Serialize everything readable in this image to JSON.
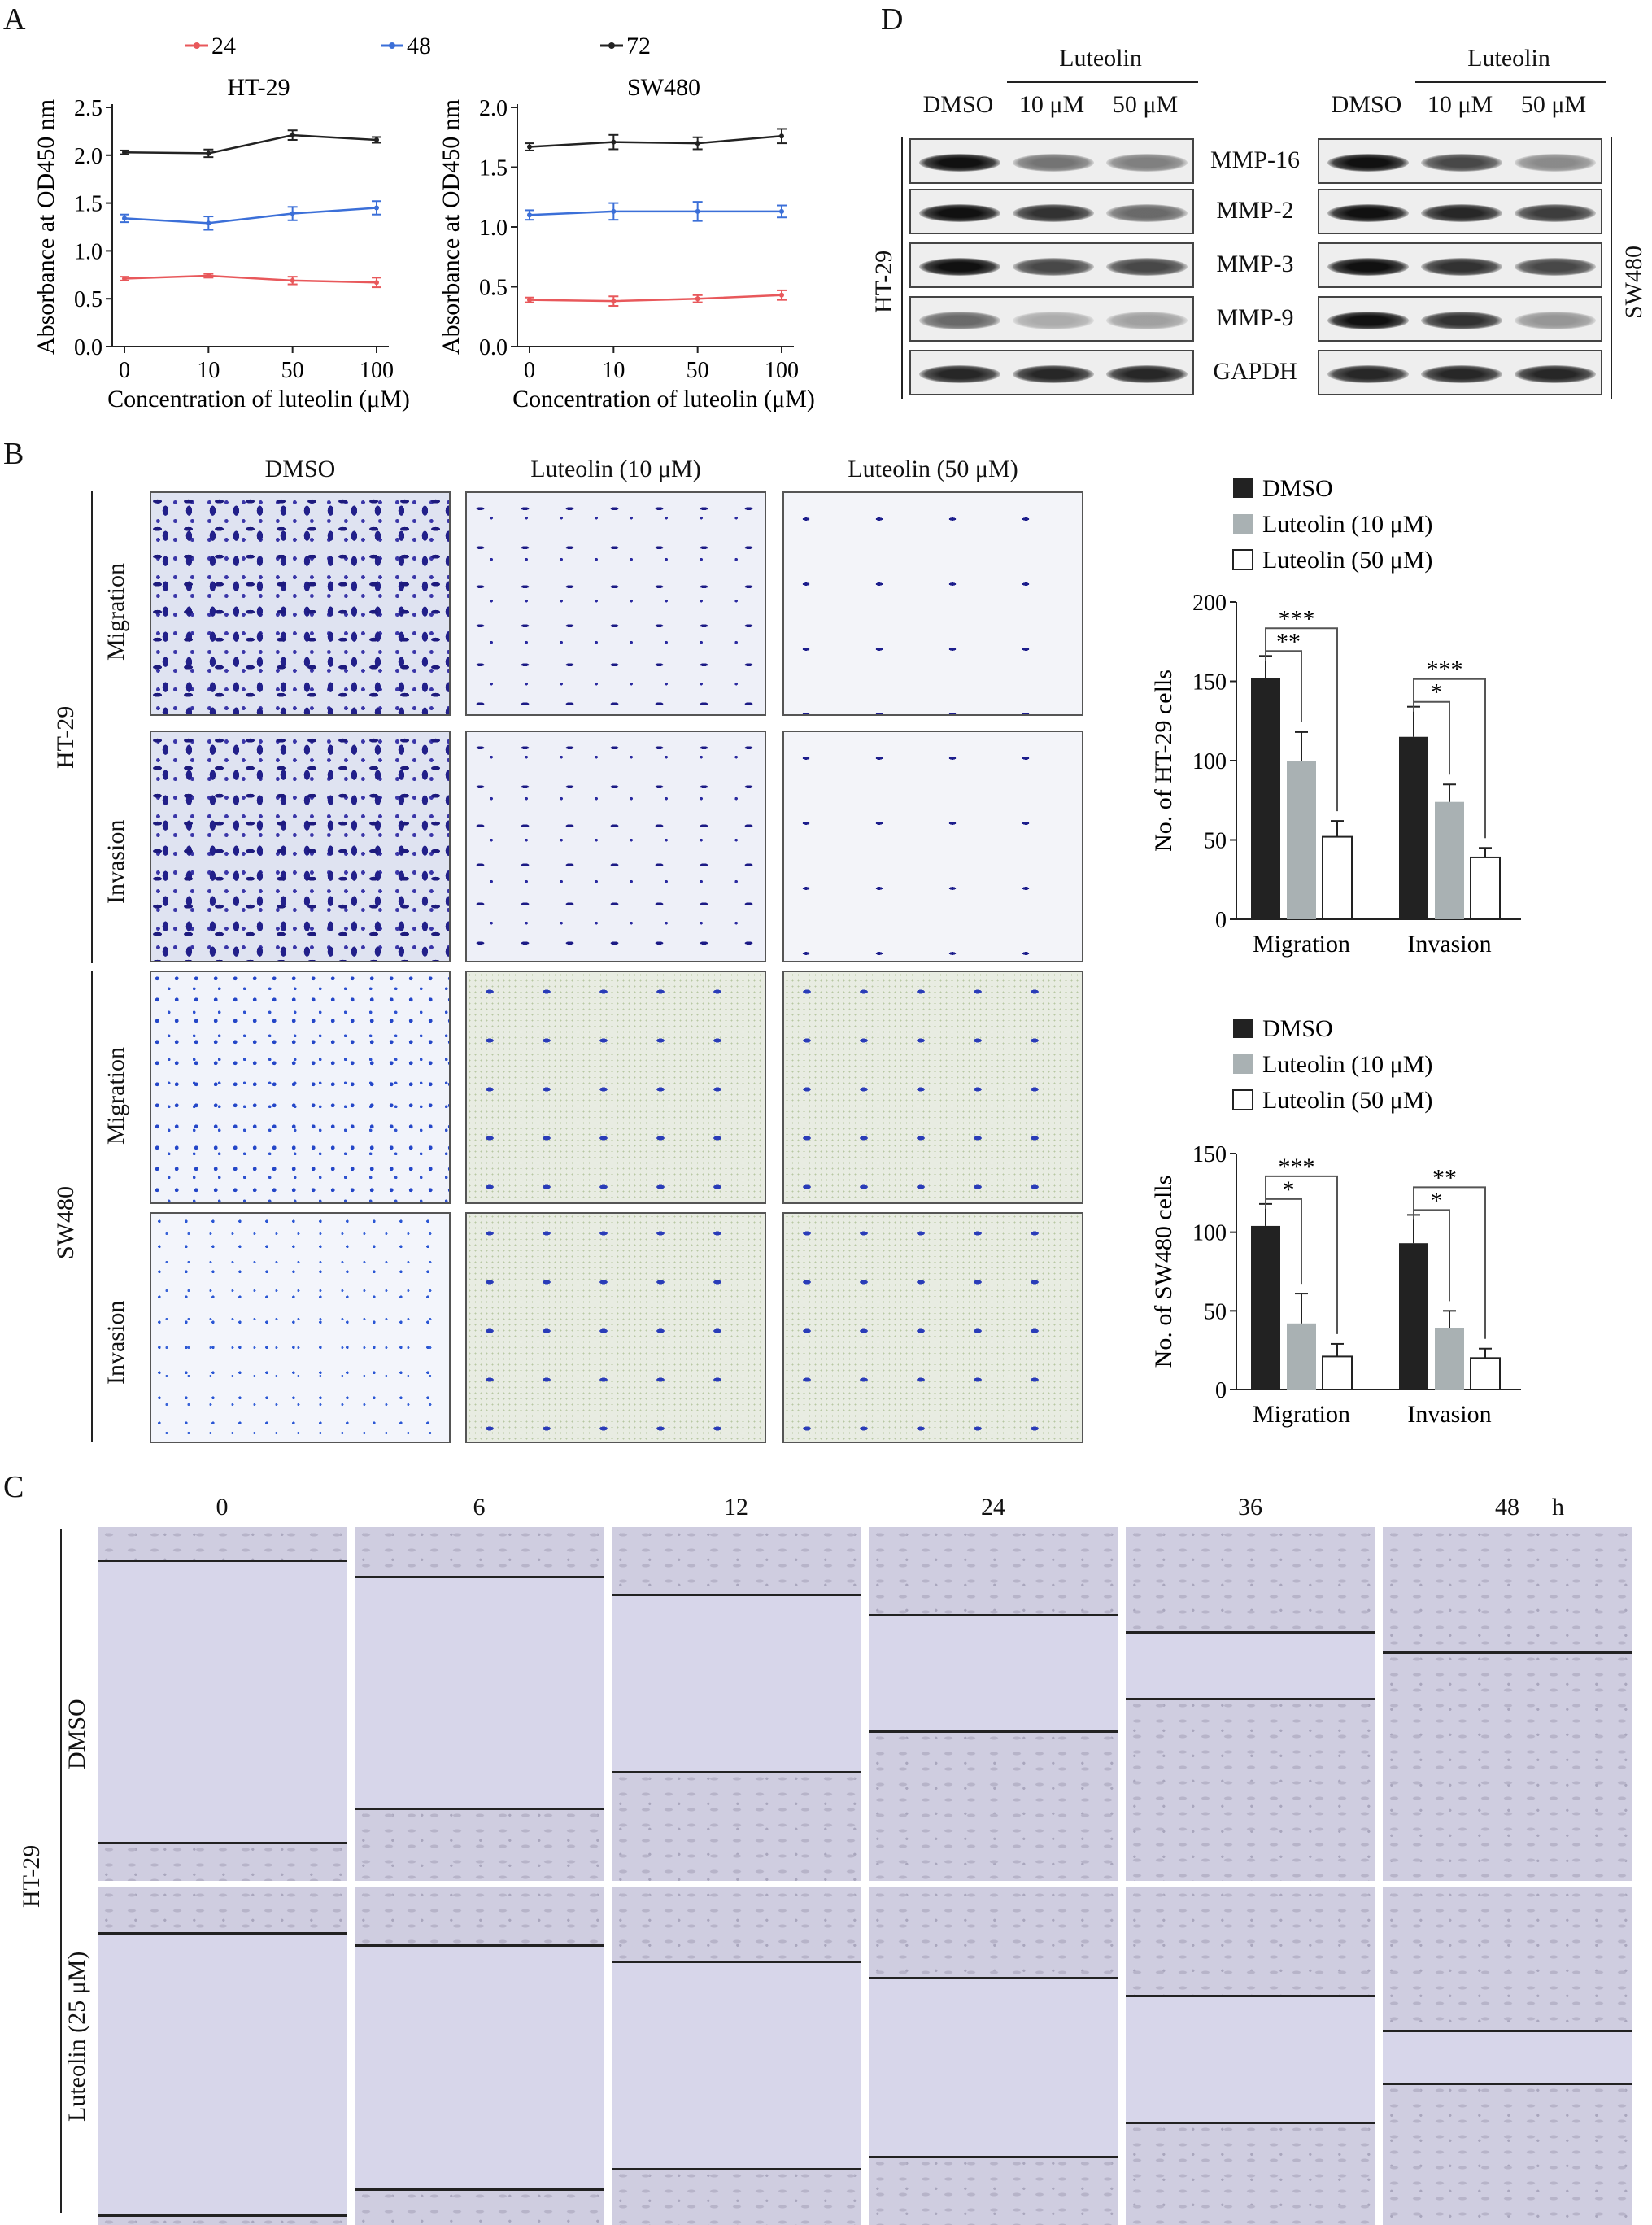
{
  "panels": {
    "a": "A",
    "b": "B",
    "c": "C",
    "d": "D"
  },
  "panelA": {
    "legend": [
      {
        "label": "24",
        "color": "#e8585b"
      },
      {
        "label": "48",
        "color": "#3b6fd8"
      },
      {
        "label": "72",
        "color": "#222222"
      }
    ],
    "ylabel": "Absorbance at OD450 nm",
    "xlabel": "Concentration of luteolin (μM)"
  },
  "chart_data": [
    {
      "type": "line",
      "title": "HT-29",
      "categories": [
        "0",
        "10",
        "50",
        "100"
      ],
      "ylabel": "Absorbance at OD450 nm",
      "xlabel": "Concentration of luteolin (μM)",
      "ylim": [
        0.0,
        2.5
      ],
      "yticks": [
        "0.0",
        "0.5",
        "1.0",
        "1.5",
        "2.0",
        "2.5"
      ],
      "series": [
        {
          "name": "24",
          "values": [
            0.71,
            0.74,
            0.69,
            0.67
          ],
          "err": [
            0.02,
            0.02,
            0.04,
            0.05
          ],
          "color": "#e8585b"
        },
        {
          "name": "48",
          "values": [
            1.34,
            1.29,
            1.39,
            1.45
          ],
          "err": [
            0.04,
            0.07,
            0.07,
            0.07
          ],
          "color": "#3b6fd8"
        },
        {
          "name": "72",
          "values": [
            2.03,
            2.02,
            2.21,
            2.16
          ],
          "err": [
            0.02,
            0.04,
            0.05,
            0.03
          ],
          "color": "#222222"
        }
      ]
    },
    {
      "type": "line",
      "title": "SW480",
      "categories": [
        "0",
        "10",
        "50",
        "100"
      ],
      "ylabel": "Absorbance at OD450 nm",
      "xlabel": "Concentration of luteolin (μM)",
      "ylim": [
        0.0,
        2.0
      ],
      "yticks": [
        "0.0",
        "0.5",
        "1.0",
        "1.5",
        "2.0"
      ],
      "series": [
        {
          "name": "24",
          "values": [
            0.39,
            0.38,
            0.4,
            0.43
          ],
          "err": [
            0.02,
            0.04,
            0.03,
            0.04
          ],
          "color": "#e8585b"
        },
        {
          "name": "48",
          "values": [
            1.1,
            1.13,
            1.13,
            1.13
          ],
          "err": [
            0.04,
            0.07,
            0.08,
            0.05
          ],
          "color": "#3b6fd8"
        },
        {
          "name": "72",
          "values": [
            1.67,
            1.71,
            1.7,
            1.76
          ],
          "err": [
            0.03,
            0.06,
            0.05,
            0.06
          ],
          "color": "#222222"
        }
      ]
    },
    {
      "type": "bar",
      "ylabel": "No. of HT-29 cells",
      "categories": [
        "Migration",
        "Invasion"
      ],
      "ylim": [
        0,
        200
      ],
      "yticks": [
        "0",
        "50",
        "100",
        "150",
        "200"
      ],
      "series": [
        {
          "name": "DMSO",
          "values": [
            152,
            115
          ],
          "err": [
            14,
            19
          ]
        },
        {
          "name": "Luteolin (10 μM)",
          "values": [
            100,
            74
          ],
          "err": [
            18,
            11
          ]
        },
        {
          "name": "Luteolin (50 μM)",
          "values": [
            52,
            39
          ],
          "err": [
            10,
            6
          ]
        }
      ],
      "significance": {
        "Migration": [
          "**",
          "***"
        ],
        "Invasion": [
          "*",
          "***"
        ]
      }
    },
    {
      "type": "bar",
      "ylabel": "No. of SW480 cells",
      "categories": [
        "Migration",
        "Invasion"
      ],
      "ylim": [
        0,
        150
      ],
      "yticks": [
        "0",
        "50",
        "100",
        "150"
      ],
      "series": [
        {
          "name": "DMSO",
          "values": [
            104,
            93
          ],
          "err": [
            14,
            18
          ]
        },
        {
          "name": "Luteolin (10 μM)",
          "values": [
            42,
            39
          ],
          "err": [
            19,
            11
          ]
        },
        {
          "name": "Luteolin (50 μM)",
          "values": [
            21,
            20
          ],
          "err": [
            8,
            6
          ]
        }
      ],
      "significance": {
        "Migration": [
          "*",
          "***"
        ],
        "Invasion": [
          "*",
          "**"
        ]
      }
    }
  ],
  "panelB": {
    "columns": [
      "DMSO",
      "Luteolin (10 μM)",
      "Luteolin (50 μM)"
    ],
    "cell_lines": [
      "HT-29",
      "SW480"
    ],
    "rows": [
      "Migration",
      "Invasion",
      "Migration",
      "Invasion"
    ],
    "legend": [
      "DMSO",
      "Luteolin (10 μM)",
      "Luteolin (50 μM)"
    ]
  },
  "panelC": {
    "times": [
      "0",
      "6",
      "12",
      "24",
      "36",
      "48"
    ],
    "unit": "h",
    "cell_line": "HT-29",
    "rows": [
      "DMSO",
      "Luteolin (25 μM)"
    ]
  },
  "panelD": {
    "header_group": "Luteolin",
    "lanes": [
      "DMSO",
      "10 μM",
      "50 μM"
    ],
    "proteins": [
      "MMP-16",
      "MMP-2",
      "MMP-3",
      "MMP-9",
      "GAPDH"
    ],
    "left_line": "HT-29",
    "right_line": "SW480"
  }
}
